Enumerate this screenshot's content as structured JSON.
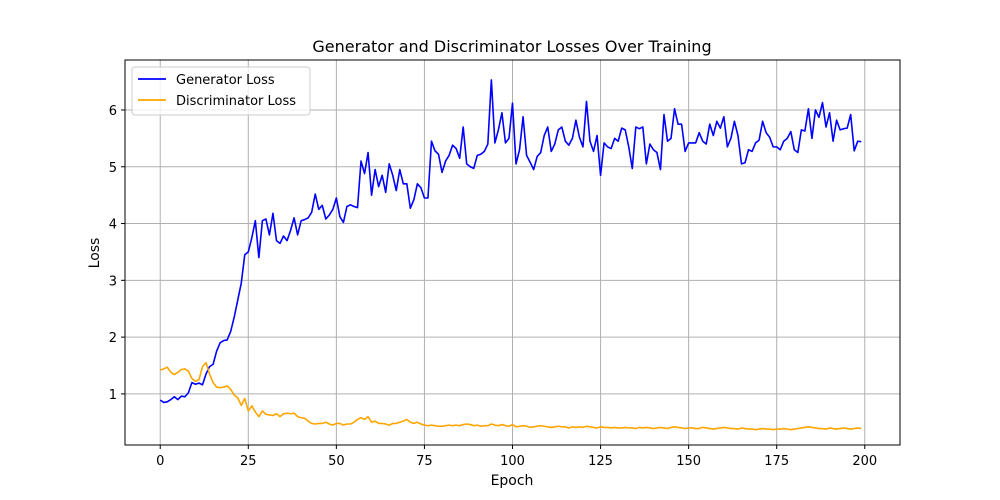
{
  "chart_data": {
    "type": "line",
    "title": "Generator and Discriminator Losses Over Training",
    "xlabel": "Epoch",
    "ylabel": "Loss",
    "xlim": [
      -10,
      210
    ],
    "ylim": [
      0.1,
      6.88
    ],
    "xticks": [
      0,
      25,
      50,
      75,
      100,
      125,
      150,
      175,
      200
    ],
    "yticks": [
      1,
      2,
      3,
      4,
      5,
      6
    ],
    "grid": true,
    "legend_position": "top-left",
    "series": [
      {
        "name": "Generator Loss",
        "color": "#0000ff",
        "x": [
          0,
          1,
          2,
          3,
          4,
          5,
          6,
          7,
          8,
          9,
          10,
          11,
          12,
          13,
          14,
          15,
          16,
          17,
          18,
          19,
          20,
          21,
          22,
          23,
          24,
          25,
          26,
          27,
          28,
          29,
          30,
          31,
          32,
          33,
          34,
          35,
          36,
          37,
          38,
          39,
          40,
          41,
          42,
          43,
          44,
          45,
          46,
          47,
          48,
          49,
          50,
          51,
          52,
          53,
          54,
          55,
          56,
          57,
          58,
          59,
          60,
          61,
          62,
          63,
          64,
          65,
          66,
          67,
          68,
          69,
          70,
          71,
          72,
          73,
          74,
          75,
          76,
          77,
          78,
          79,
          80,
          81,
          82,
          83,
          84,
          85,
          86,
          87,
          88,
          89,
          90,
          91,
          92,
          93,
          94,
          95,
          96,
          97,
          98,
          99,
          100,
          101,
          102,
          103,
          104,
          105,
          106,
          107,
          108,
          109,
          110,
          111,
          112,
          113,
          114,
          115,
          116,
          117,
          118,
          119,
          120,
          121,
          122,
          123,
          124,
          125,
          126,
          127,
          128,
          129,
          130,
          131,
          132,
          133,
          134,
          135,
          136,
          137,
          138,
          139,
          140,
          141,
          142,
          143,
          144,
          145,
          146,
          147,
          148,
          149,
          150,
          151,
          152,
          153,
          154,
          155,
          156,
          157,
          158,
          159,
          160,
          161,
          162,
          163,
          164,
          165,
          166,
          167,
          168,
          169,
          170,
          171,
          172,
          173,
          174,
          175,
          176,
          177,
          178,
          179,
          180,
          181,
          182,
          183,
          184,
          185,
          186,
          187,
          188,
          189,
          190,
          191,
          192,
          193,
          194,
          195,
          196,
          197,
          198,
          199
        ],
        "values": [
          0.89,
          0.85,
          0.86,
          0.9,
          0.95,
          0.9,
          0.96,
          0.95,
          1.02,
          1.2,
          1.17,
          1.19,
          1.16,
          1.35,
          1.48,
          1.52,
          1.75,
          1.9,
          1.94,
          1.95,
          2.1,
          2.35,
          2.65,
          2.95,
          3.45,
          3.5,
          3.75,
          4.05,
          3.4,
          4.05,
          4.08,
          3.8,
          4.18,
          3.7,
          3.65,
          3.78,
          3.7,
          3.88,
          4.1,
          3.8,
          4.05,
          4.07,
          4.1,
          4.2,
          4.52,
          4.25,
          4.32,
          4.08,
          4.15,
          4.25,
          4.45,
          4.12,
          4.02,
          4.3,
          4.33,
          4.3,
          4.28,
          5.1,
          4.88,
          5.25,
          4.5,
          4.95,
          4.65,
          4.85,
          4.55,
          5.05,
          4.85,
          4.58,
          4.95,
          4.7,
          4.7,
          4.27,
          4.42,
          4.7,
          4.63,
          4.45,
          4.45,
          5.45,
          5.28,
          5.22,
          4.9,
          5.1,
          5.2,
          5.38,
          5.32,
          5.15,
          5.7,
          5.05,
          5.0,
          4.97,
          5.2,
          5.22,
          5.27,
          5.4,
          6.53,
          5.42,
          5.65,
          5.95,
          5.42,
          5.5,
          6.12,
          5.05,
          5.3,
          5.88,
          5.2,
          5.08,
          4.95,
          5.18,
          5.25,
          5.55,
          5.7,
          5.27,
          5.4,
          5.65,
          5.7,
          5.45,
          5.38,
          5.5,
          5.82,
          5.52,
          5.35,
          6.15,
          5.45,
          5.27,
          5.55,
          4.85,
          5.42,
          5.35,
          5.32,
          5.5,
          5.45,
          5.68,
          5.65,
          5.35,
          4.97,
          5.7,
          5.67,
          5.7,
          5.05,
          5.4,
          5.3,
          5.25,
          4.95,
          5.92,
          5.45,
          5.5,
          6.02,
          5.75,
          5.75,
          5.27,
          5.42,
          5.42,
          5.42,
          5.6,
          5.45,
          5.4,
          5.75,
          5.55,
          5.8,
          5.68,
          5.88,
          5.35,
          5.5,
          5.8,
          5.55,
          5.05,
          5.07,
          5.3,
          5.27,
          5.42,
          5.47,
          5.8,
          5.6,
          5.52,
          5.35,
          5.35,
          5.3,
          5.45,
          5.5,
          5.62,
          5.3,
          5.25,
          5.65,
          5.63,
          6.02,
          5.5,
          6.0,
          5.87,
          6.13,
          5.7,
          5.95,
          5.45,
          5.82,
          5.65,
          5.67,
          5.68,
          5.92,
          5.28,
          5.45,
          5.44
        ]
      },
      {
        "name": "Discriminator Loss",
        "color": "#ffa500",
        "x": [
          0,
          1,
          2,
          3,
          4,
          5,
          6,
          7,
          8,
          9,
          10,
          11,
          12,
          13,
          14,
          15,
          16,
          17,
          18,
          19,
          20,
          21,
          22,
          23,
          24,
          25,
          26,
          27,
          28,
          29,
          30,
          31,
          32,
          33,
          34,
          35,
          36,
          37,
          38,
          39,
          40,
          41,
          42,
          43,
          44,
          45,
          46,
          47,
          48,
          49,
          50,
          51,
          52,
          53,
          54,
          55,
          56,
          57,
          58,
          59,
          60,
          61,
          62,
          63,
          64,
          65,
          66,
          67,
          68,
          69,
          70,
          71,
          72,
          73,
          74,
          75,
          76,
          77,
          78,
          79,
          80,
          81,
          82,
          83,
          84,
          85,
          86,
          87,
          88,
          89,
          90,
          91,
          92,
          93,
          94,
          95,
          96,
          97,
          98,
          99,
          100,
          101,
          102,
          103,
          104,
          105,
          106,
          107,
          108,
          109,
          110,
          111,
          112,
          113,
          114,
          115,
          116,
          117,
          118,
          119,
          120,
          121,
          122,
          123,
          124,
          125,
          126,
          127,
          128,
          129,
          130,
          131,
          132,
          133,
          134,
          135,
          136,
          137,
          138,
          139,
          140,
          141,
          142,
          143,
          144,
          145,
          146,
          147,
          148,
          149,
          150,
          151,
          152,
          153,
          154,
          155,
          156,
          157,
          158,
          159,
          160,
          161,
          162,
          163,
          164,
          165,
          166,
          167,
          168,
          169,
          170,
          171,
          172,
          173,
          174,
          175,
          176,
          177,
          178,
          179,
          180,
          181,
          182,
          183,
          184,
          185,
          186,
          187,
          188,
          189,
          190,
          191,
          192,
          193,
          194,
          195,
          196,
          197,
          198,
          199
        ],
        "values": [
          1.42,
          1.44,
          1.47,
          1.38,
          1.34,
          1.38,
          1.43,
          1.44,
          1.4,
          1.27,
          1.22,
          1.25,
          1.48,
          1.55,
          1.35,
          1.2,
          1.12,
          1.11,
          1.12,
          1.14,
          1.08,
          0.98,
          0.93,
          0.8,
          0.92,
          0.7,
          0.79,
          0.68,
          0.6,
          0.7,
          0.64,
          0.63,
          0.62,
          0.65,
          0.6,
          0.65,
          0.66,
          0.65,
          0.66,
          0.6,
          0.58,
          0.57,
          0.52,
          0.48,
          0.47,
          0.48,
          0.48,
          0.5,
          0.47,
          0.45,
          0.48,
          0.48,
          0.45,
          0.47,
          0.47,
          0.5,
          0.55,
          0.58,
          0.55,
          0.6,
          0.5,
          0.52,
          0.48,
          0.48,
          0.47,
          0.45,
          0.48,
          0.48,
          0.5,
          0.52,
          0.55,
          0.5,
          0.48,
          0.5,
          0.47,
          0.45,
          0.44,
          0.45,
          0.44,
          0.43,
          0.43,
          0.44,
          0.45,
          0.44,
          0.45,
          0.44,
          0.46,
          0.47,
          0.46,
          0.44,
          0.45,
          0.43,
          0.44,
          0.44,
          0.47,
          0.45,
          0.44,
          0.46,
          0.44,
          0.43,
          0.46,
          0.42,
          0.43,
          0.44,
          0.43,
          0.41,
          0.42,
          0.43,
          0.44,
          0.43,
          0.42,
          0.41,
          0.42,
          0.43,
          0.42,
          0.42,
          0.4,
          0.42,
          0.41,
          0.42,
          0.41,
          0.43,
          0.42,
          0.41,
          0.4,
          0.42,
          0.41,
          0.41,
          0.4,
          0.41,
          0.4,
          0.4,
          0.41,
          0.4,
          0.4,
          0.39,
          0.41,
          0.4,
          0.41,
          0.4,
          0.39,
          0.4,
          0.41,
          0.4,
          0.39,
          0.41,
          0.42,
          0.41,
          0.4,
          0.39,
          0.4,
          0.4,
          0.39,
          0.39,
          0.41,
          0.4,
          0.39,
          0.38,
          0.39,
          0.4,
          0.41,
          0.4,
          0.39,
          0.39,
          0.38,
          0.4,
          0.39,
          0.38,
          0.38,
          0.37,
          0.38,
          0.39,
          0.38,
          0.38,
          0.37,
          0.38,
          0.38,
          0.39,
          0.38,
          0.37,
          0.38,
          0.39,
          0.4,
          0.41,
          0.42,
          0.41,
          0.4,
          0.39,
          0.39,
          0.38,
          0.4,
          0.39,
          0.38,
          0.39,
          0.4,
          0.39,
          0.38,
          0.39,
          0.4,
          0.39
        ]
      }
    ]
  }
}
